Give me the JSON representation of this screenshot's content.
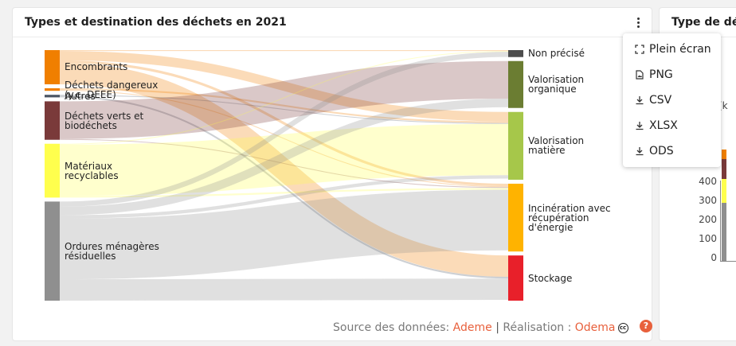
{
  "card1": {
    "title": "Types et destination des déchets en 2021",
    "footer": {
      "source_prefix": "Source des données: ",
      "source_link": "Ademe",
      "separator": "|",
      "credit_prefix": " Réalisation : ",
      "credit_link": "Odema",
      "license_icon": "cc-by-icon",
      "help_symbol": "?"
    }
  },
  "card2": {
    "title": "Type de déc",
    "axis_unit_fragment": "(k",
    "y_ticks": [
      "400",
      "300",
      "200",
      "100",
      "0"
    ]
  },
  "export_menu": {
    "items": [
      {
        "icon": "fullscreen-icon",
        "label": "Plein écran"
      },
      {
        "icon": "file-image-icon",
        "label": "PNG"
      },
      {
        "icon": "download-icon",
        "label": "CSV"
      },
      {
        "icon": "download-icon",
        "label": "XLSX"
      },
      {
        "icon": "download-icon",
        "label": "ODS"
      }
    ]
  },
  "colors": {
    "accent": "#e8603c",
    "encombrants": "#f07f00",
    "dangereux": "#f07f00",
    "autres": "#4b5563",
    "dechets_verts": "#7a3a3a",
    "materiaux": "#ffff4d",
    "ordures": "#8f8f8f",
    "non_precise": "#4d4d4d",
    "valorisation_organique": "#6b7d32",
    "valorisation_matiere": "#a6c74a",
    "incineration": "#ffb300",
    "stockage": "#e8202a"
  },
  "chart_data": {
    "type": "sankey",
    "title": "Types et destination des déchets en 2021",
    "sources": [
      {
        "id": "encombrants",
        "label": "Encombrants",
        "color": "#f07f00"
      },
      {
        "id": "dangereux",
        "label": "Déchets dangereux (y.c. DEEE)",
        "color": "#f07f00"
      },
      {
        "id": "autres",
        "label": "Autres",
        "color": "#4b5563"
      },
      {
        "id": "verts",
        "label": "Déchets verts et biodéchets",
        "color": "#7a3a3a"
      },
      {
        "id": "materiaux",
        "label": "Matériaux recyclables",
        "color": "#ffff4d"
      },
      {
        "id": "ordures",
        "label": "Ordures ménagères résiduelles",
        "color": "#8f8f8f"
      }
    ],
    "targets": [
      {
        "id": "nonprecise",
        "label": "Non précisé",
        "color": "#4d4d4d"
      },
      {
        "id": "organique",
        "label": "Valorisation organique",
        "color": "#6b7d32"
      },
      {
        "id": "matiere",
        "label": "Valorisation matière",
        "color": "#a6c74a"
      },
      {
        "id": "incineration",
        "label": "Incinération avec récupération d'énergie",
        "color": "#ffb300"
      },
      {
        "id": "stockage",
        "label": "Stockage",
        "color": "#e8202a"
      }
    ],
    "links": [
      {
        "source": "encombrants",
        "target": "nonprecise",
        "value": 1
      },
      {
        "source": "encombrants",
        "target": "matiere",
        "value": 11
      },
      {
        "source": "encombrants",
        "target": "incineration",
        "value": 3
      },
      {
        "source": "encombrants",
        "target": "stockage",
        "value": 25
      },
      {
        "source": "dangereux",
        "target": "matiere",
        "value": 2
      },
      {
        "source": "dangereux",
        "target": "incineration",
        "value": 1
      },
      {
        "source": "autres",
        "target": "matiere",
        "value": 1
      },
      {
        "source": "autres",
        "target": "stockage",
        "value": 2
      },
      {
        "source": "verts",
        "target": "organique",
        "value": 44
      },
      {
        "source": "verts",
        "target": "incineration",
        "value": 1
      },
      {
        "source": "materiaux",
        "target": "nonprecise",
        "value": 1
      },
      {
        "source": "materiaux",
        "target": "matiere",
        "value": 60
      },
      {
        "source": "materiaux",
        "target": "incineration",
        "value": 2
      },
      {
        "source": "ordures",
        "target": "nonprecise",
        "value": 6
      },
      {
        "source": "ordures",
        "target": "organique",
        "value": 10
      },
      {
        "source": "ordures",
        "target": "matiere",
        "value": 4
      },
      {
        "source": "ordures",
        "target": "incineration",
        "value": 71
      },
      {
        "source": "ordures",
        "target": "stockage",
        "value": 25
      }
    ]
  }
}
